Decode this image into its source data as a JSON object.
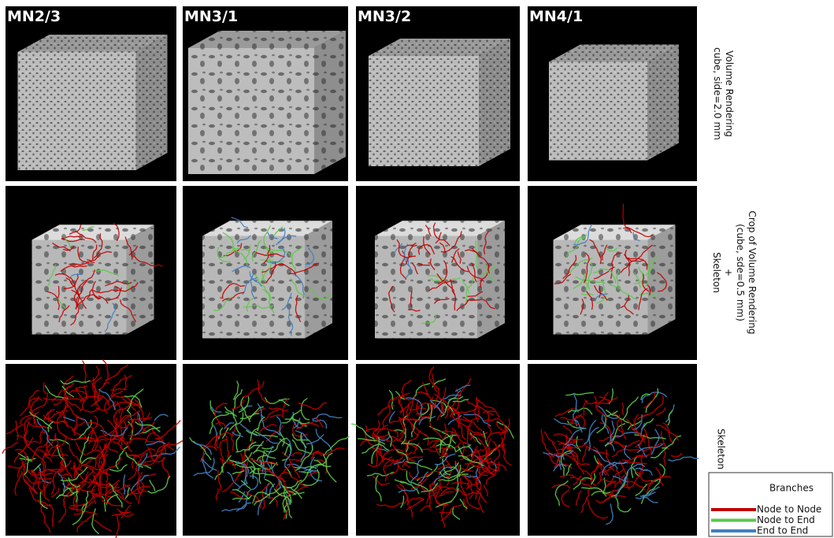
{
  "columns": [
    "MN2/3",
    "MN3/1",
    "MN3/2",
    "MN4/1"
  ],
  "rows": [
    {
      "label_lines": [
        "Volume Rendering",
        "cube, side=2.0 mm"
      ]
    },
    {
      "label_lines": [
        "Crop of Volume Rendering",
        "(cube, sde=0.5 mm)",
        "+",
        "Skeleton"
      ]
    },
    {
      "label_lines": [
        "Skeleton"
      ]
    }
  ],
  "legend": {
    "title": "Branches",
    "items": [
      {
        "label": "Node to Node",
        "color": "#c00000"
      },
      {
        "label": "Node to End",
        "color": "#5cc84a"
      },
      {
        "label": "End to End",
        "color": "#3f7fc0"
      }
    ]
  }
}
